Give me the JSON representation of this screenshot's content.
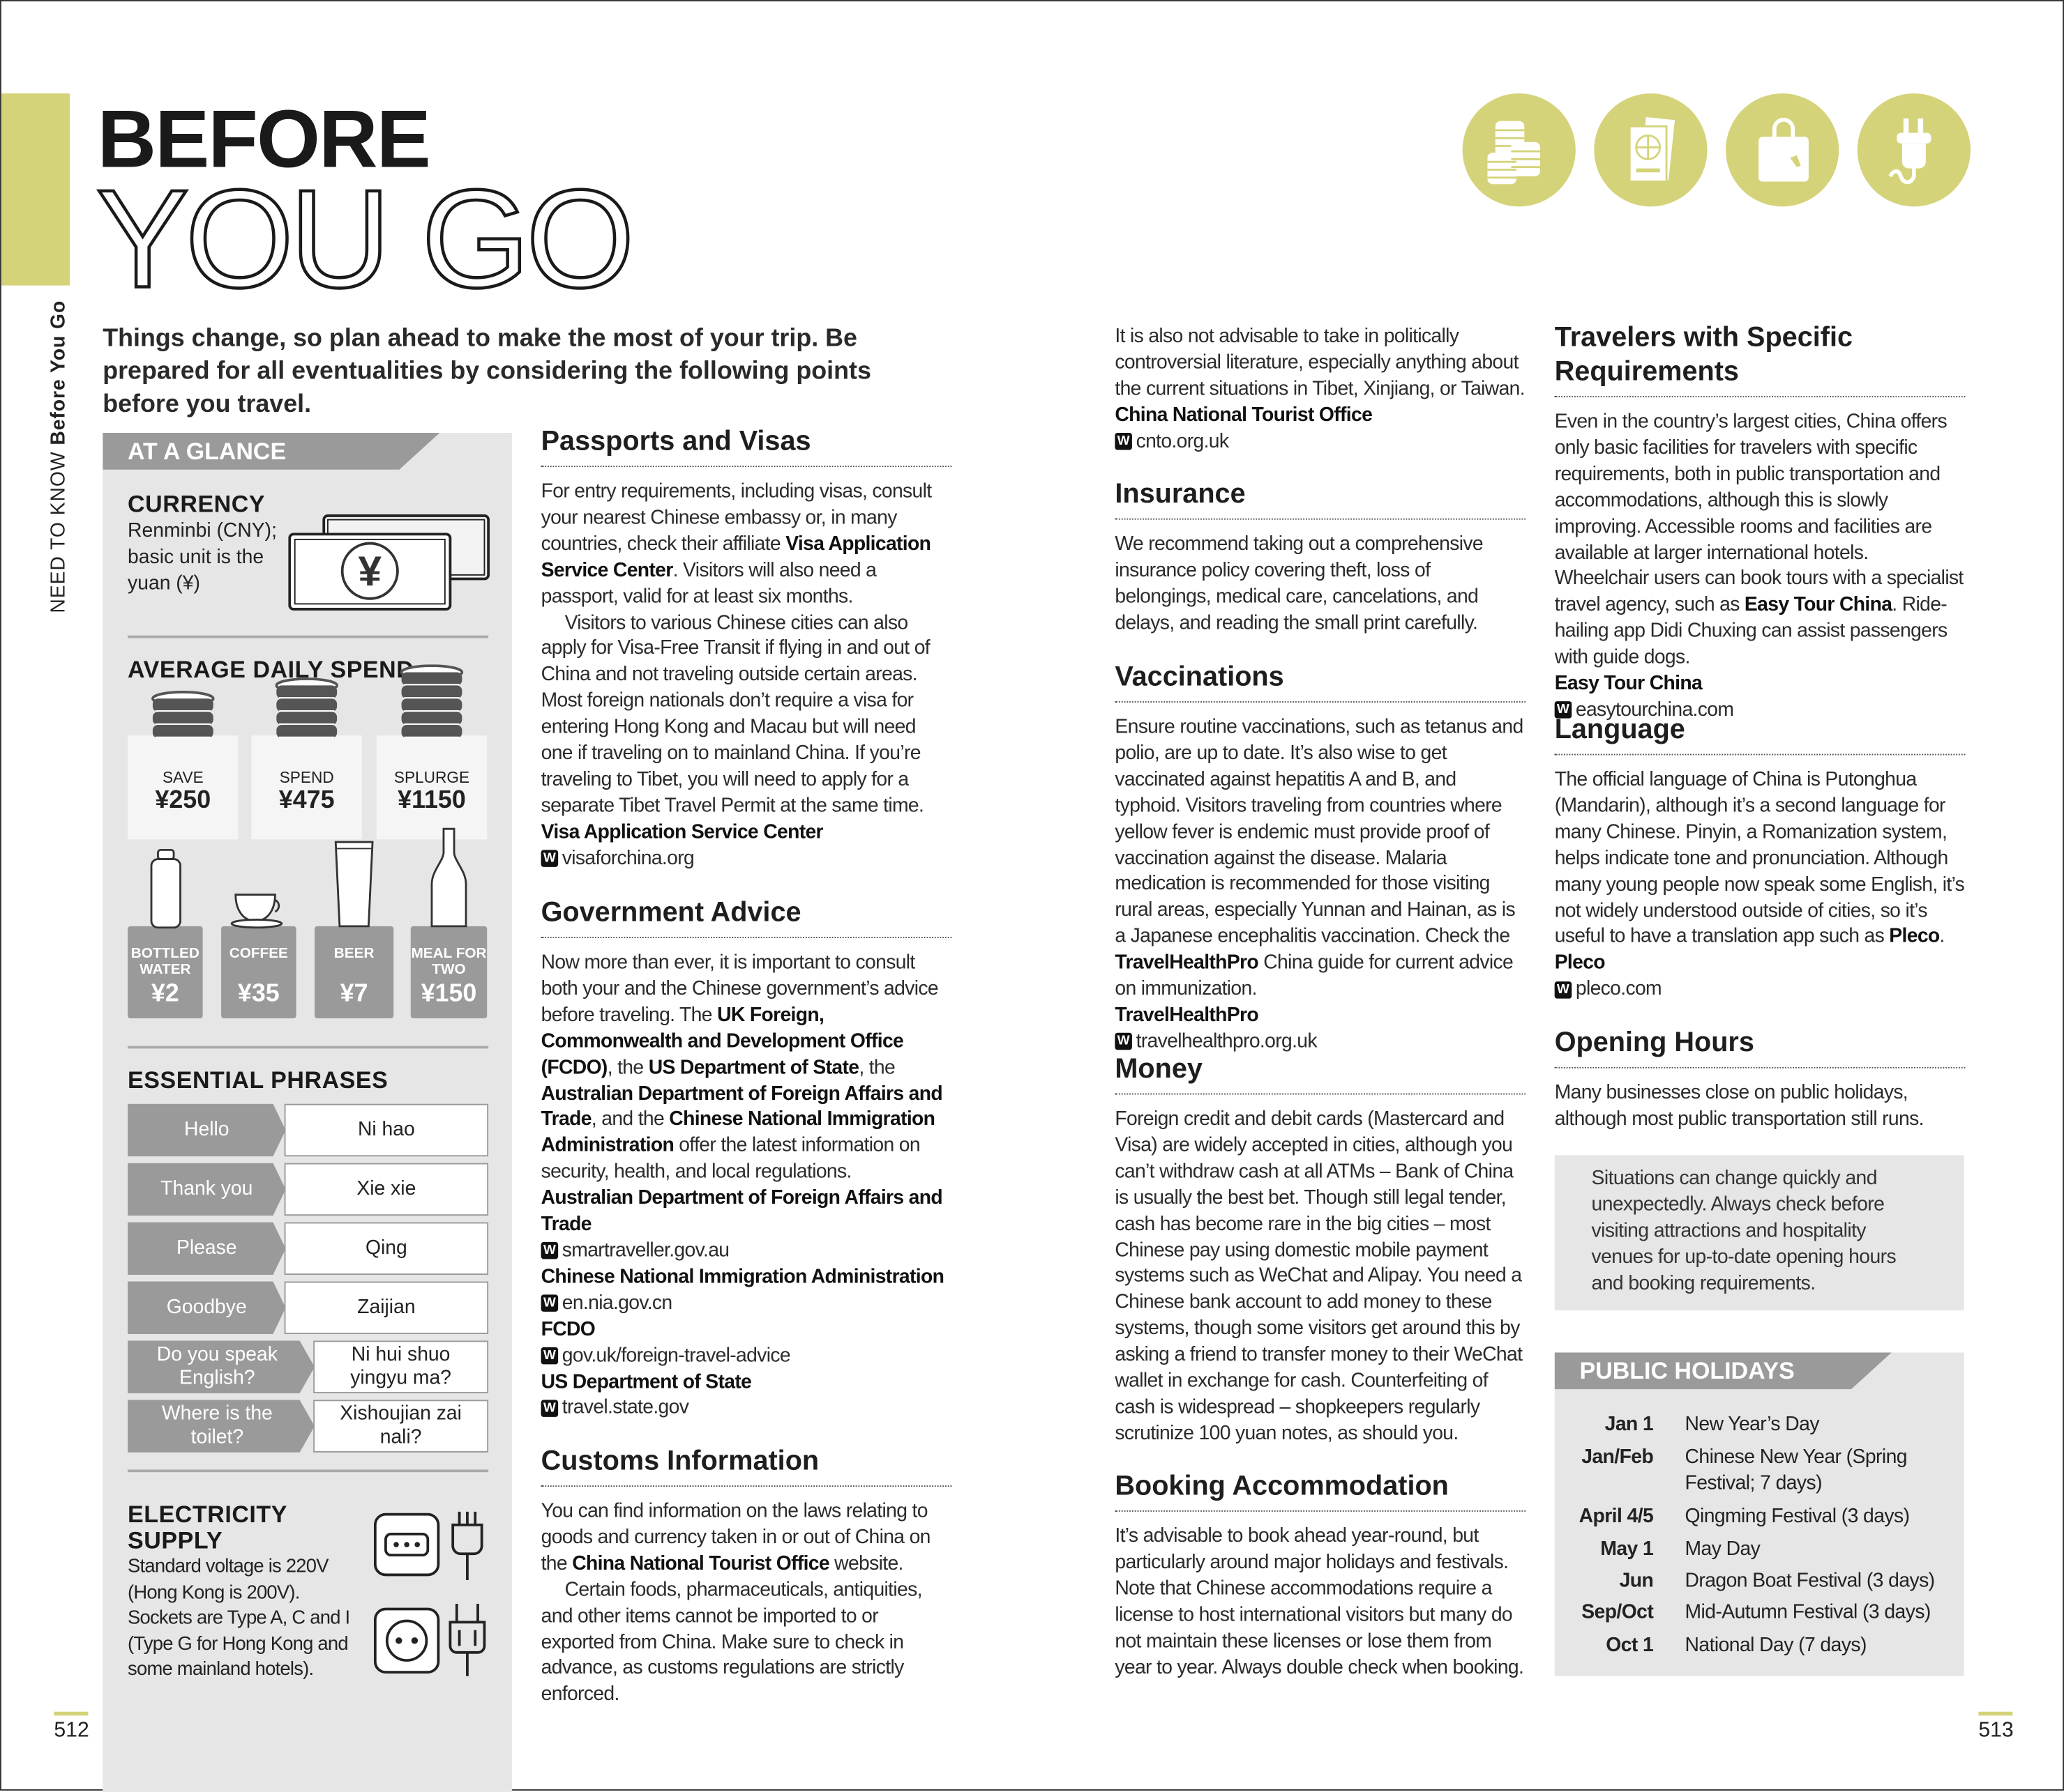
{
  "header": {
    "title_line1": "BEFORE",
    "title_line2": "YOU GO",
    "running_head_section": "NEED TO KNOW",
    "running_head_chapter": "Before You Go",
    "intro": "Things change, so plan ahead to make the most of your trip. Be prepared for all eventualities by considering the following points before you travel.",
    "icons": [
      "coins-icon",
      "passport-icon",
      "shopping-bag-icon",
      "plug-icon"
    ],
    "accent_color": "#d5d37a"
  },
  "glance": {
    "title": "AT A GLANCE",
    "currency": {
      "heading": "CURRENCY",
      "text": "Renminbi (CNY); basic unit is the yuan (¥)",
      "icon_symbol": "¥"
    },
    "spend": {
      "heading": "AVERAGE DAILY SPEND",
      "levels": [
        {
          "label": "SAVE",
          "value": "¥250"
        },
        {
          "label": "SPEND",
          "value": "¥475"
        },
        {
          "label": "SPLURGE",
          "value": "¥1150"
        }
      ],
      "items": [
        {
          "label": "BOTTLED WATER",
          "value": "¥2"
        },
        {
          "label": "COFFEE",
          "value": "¥35"
        },
        {
          "label": "BEER",
          "value": "¥7"
        },
        {
          "label": "MEAL FOR TWO",
          "value": "¥150"
        }
      ]
    },
    "phrases": {
      "heading": "ESSENTIAL PHRASES",
      "rows": [
        {
          "en": "Hello",
          "zh": "Ni hao"
        },
        {
          "en": "Thank you",
          "zh": "Xie xie"
        },
        {
          "en": "Please",
          "zh": "Qing"
        },
        {
          "en": "Goodbye",
          "zh": "Zaijian"
        },
        {
          "en": "Do you speak English?",
          "zh": "Ni hui shuo yingyu ma?"
        },
        {
          "en": "Where is the toilet?",
          "zh": "Xishoujian zai nali?"
        }
      ]
    },
    "electricity": {
      "heading": "ELECTRICITY SUPPLY",
      "text": "Standard voltage is 220V (Hong Kong is 200V). Sockets are Type A, C and I (Type G for Hong Kong and some mainland hotels)."
    }
  },
  "sections": [
    {
      "id": "passports",
      "heading": "Passports and Visas",
      "paras": [
        {
          "runs": [
            [
              "For entry requirements, including visas, consult your nearest Chinese embassy or, in many countries, check their affiliate ",
              0
            ],
            [
              "Visa Application Service Center",
              1
            ],
            [
              ". Visitors will also need a passport, valid for at least six months.",
              0
            ]
          ]
        },
        {
          "indent": true,
          "runs": [
            [
              "Visitors to various Chinese cities can also apply for Visa-Free Transit if flying in and out of China and not traveling outside certain areas. Most foreign nationals don’t require a visa for entering Hong Kong and Macau but will need one if traveling on to mainland China. If you’re traveling to Tibet, you will need to apply for a separate Tibet Travel Permit at the same time.",
              0
            ]
          ]
        }
      ],
      "links": [
        {
          "name": "Visa Application Service Center",
          "url": "visaforchina.org"
        }
      ]
    },
    {
      "id": "government",
      "heading": "Government Advice",
      "paras": [
        {
          "runs": [
            [
              "Now more than ever, it is important to consult both your and the Chinese government’s advice before traveling. The ",
              0
            ],
            [
              "UK Foreign, Commonwealth and Development Office (FCDO)",
              1
            ],
            [
              ", the ",
              0
            ],
            [
              "US Department of State",
              1
            ],
            [
              ", the ",
              0
            ],
            [
              "Australian Department of Foreign Affairs and Trade",
              1
            ],
            [
              ", and the ",
              0
            ],
            [
              "Chinese National Immigration Administration",
              1
            ],
            [
              " offer the latest information on security, health, and local regulations.",
              0
            ]
          ]
        }
      ],
      "links": [
        {
          "name": "Australian Department of Foreign Affairs and Trade",
          "url": "smartraveller.gov.au"
        },
        {
          "name": "Chinese National Immigration Administration",
          "url": "en.nia.gov.cn"
        },
        {
          "name": "FCDO",
          "url": "gov.uk/foreign-travel-advice"
        },
        {
          "name": "US Department of State",
          "url": "travel.state.gov"
        }
      ]
    },
    {
      "id": "customs",
      "heading": "Customs Information",
      "paras": [
        {
          "runs": [
            [
              "You can find information on the laws relating to goods and currency taken in or out of China on the ",
              0
            ],
            [
              "China National Tourist Office",
              1
            ],
            [
              " website.",
              0
            ]
          ]
        },
        {
          "indent": true,
          "runs": [
            [
              "Certain foods, pharmaceuticals, antiquities, and other items cannot be imported to or exported from China. Make sure to check in advance, as customs regulations are strictly enforced.",
              0
            ]
          ]
        }
      ],
      "links": []
    },
    {
      "id": "customs-cont",
      "heading": "",
      "paras": [
        {
          "runs": [
            [
              "It is also not advisable to take in politically controversial literature, especially anything about the current situations in Tibet, Xinjiang, or Taiwan.",
              0
            ]
          ]
        }
      ],
      "links": [
        {
          "name": "China National Tourist Office",
          "url": "cnto.org.uk"
        }
      ]
    },
    {
      "id": "insurance",
      "heading": "Insurance",
      "paras": [
        {
          "runs": [
            [
              "We recommend taking out a comprehensive insurance policy covering theft, loss of belongings, medical care, cancelations, and delays, and reading the small print carefully.",
              0
            ]
          ]
        }
      ],
      "links": []
    },
    {
      "id": "vaccinations",
      "heading": "Vaccinations",
      "paras": [
        {
          "runs": [
            [
              "Ensure routine vaccinations, such as tetanus and polio, are up to date. It’s also wise to get vaccinated against hepatitis A and B, and typhoid. Visitors traveling from countries where yellow fever is endemic must provide proof of vaccination against the disease. Malaria medication is recommended for those visiting rural areas, especially Yunnan and Hainan, as is a Japanese encephalitis vaccination. Check the ",
              0
            ],
            [
              "TravelHealthPro",
              1
            ],
            [
              " China guide for current advice on immunization.",
              0
            ]
          ]
        }
      ],
      "links": [
        {
          "name": "TravelHealthPro",
          "url": "travelhealthpro.org.uk"
        }
      ]
    },
    {
      "id": "money",
      "heading": "Money",
      "paras": [
        {
          "runs": [
            [
              "Foreign credit and debit cards (Mastercard and Visa) are widely accepted in cities, although you can’t withdraw cash at all ATMs – Bank of China is usually the best bet. Though still legal tender, cash has become rare in the big cities – most Chinese pay using domestic mobile payment systems such as WeChat and Alipay. You need a Chinese bank account to add money to these systems, though some visitors get around this by asking a friend to transfer money to their WeChat wallet in exchange for cash. Counterfeiting of cash is widespread – shopkeepers regularly scrutinize 100 yuan notes, as should you.",
              0
            ]
          ]
        }
      ],
      "links": []
    },
    {
      "id": "booking",
      "heading": "Booking Accommodation",
      "paras": [
        {
          "runs": [
            [
              "It’s advisable to book ahead year-round, but particularly around major holidays and festivals. Note that Chinese accommodations require a license to host international visitors but many do not maintain these licenses or lose them from year to year. Always double check when booking.",
              0
            ]
          ]
        }
      ],
      "links": []
    },
    {
      "id": "travelers",
      "heading": "Travelers with Specific Requirements",
      "paras": [
        {
          "runs": [
            [
              "Even in the country’s largest cities, China offers only basic facilities for travelers with specific requirements, both in public transportation and accommodations, although this is slowly improving. Accessible rooms and facilities are available at larger international hotels. Wheelchair users can book tours with a specialist travel agency, such as ",
              0
            ],
            [
              "Easy Tour China",
              1
            ],
            [
              ". Ride-hailing app Didi Chuxing can assist passengers with guide dogs.",
              0
            ]
          ]
        }
      ],
      "links": [
        {
          "name": "Easy Tour China",
          "url": "easytourchina.com"
        }
      ]
    },
    {
      "id": "language",
      "heading": "Language",
      "paras": [
        {
          "runs": [
            [
              "The official language of China is Putonghua (Mandarin), although it’s a second language for many Chinese. Pinyin, a Romanization system, helps indicate tone and pronunciation. Although many young people now speak some English, it’s not widely understood outside of cities, so it’s useful to have a translation app such as ",
              0
            ],
            [
              "Pleco",
              1
            ],
            [
              ".",
              0
            ]
          ]
        }
      ],
      "links": [
        {
          "name": "Pleco",
          "url": "pleco.com"
        }
      ]
    },
    {
      "id": "hours",
      "heading": "Opening Hours",
      "paras": [
        {
          "runs": [
            [
              "Many businesses close on public holidays, although most public transportation still runs.",
              0
            ]
          ]
        }
      ],
      "links": []
    }
  ],
  "note": "Situations can change quickly and unexpectedly. Always check before visiting attractions and hospitality venues for up-to-date opening hours and booking requirements.",
  "holidays": {
    "title": "PUBLIC HOLIDAYS",
    "rows": [
      {
        "date": "Jan 1",
        "name": "New Year’s Day"
      },
      {
        "date": "Jan/Feb",
        "name": "Chinese New Year (Spring Festival; 7 days)"
      },
      {
        "date": "April 4/5",
        "name": "Qingming Festival (3 days)"
      },
      {
        "date": "May 1",
        "name": "May Day"
      },
      {
        "date": "Jun",
        "name": "Dragon Boat Festival (3 days)"
      },
      {
        "date": "Sep/Oct",
        "name": "Mid-Autumn Festival (3 days)"
      },
      {
        "date": "Oct 1",
        "name": "National Day (7 days)"
      }
    ]
  },
  "pages": {
    "left": "512",
    "right": "513"
  }
}
